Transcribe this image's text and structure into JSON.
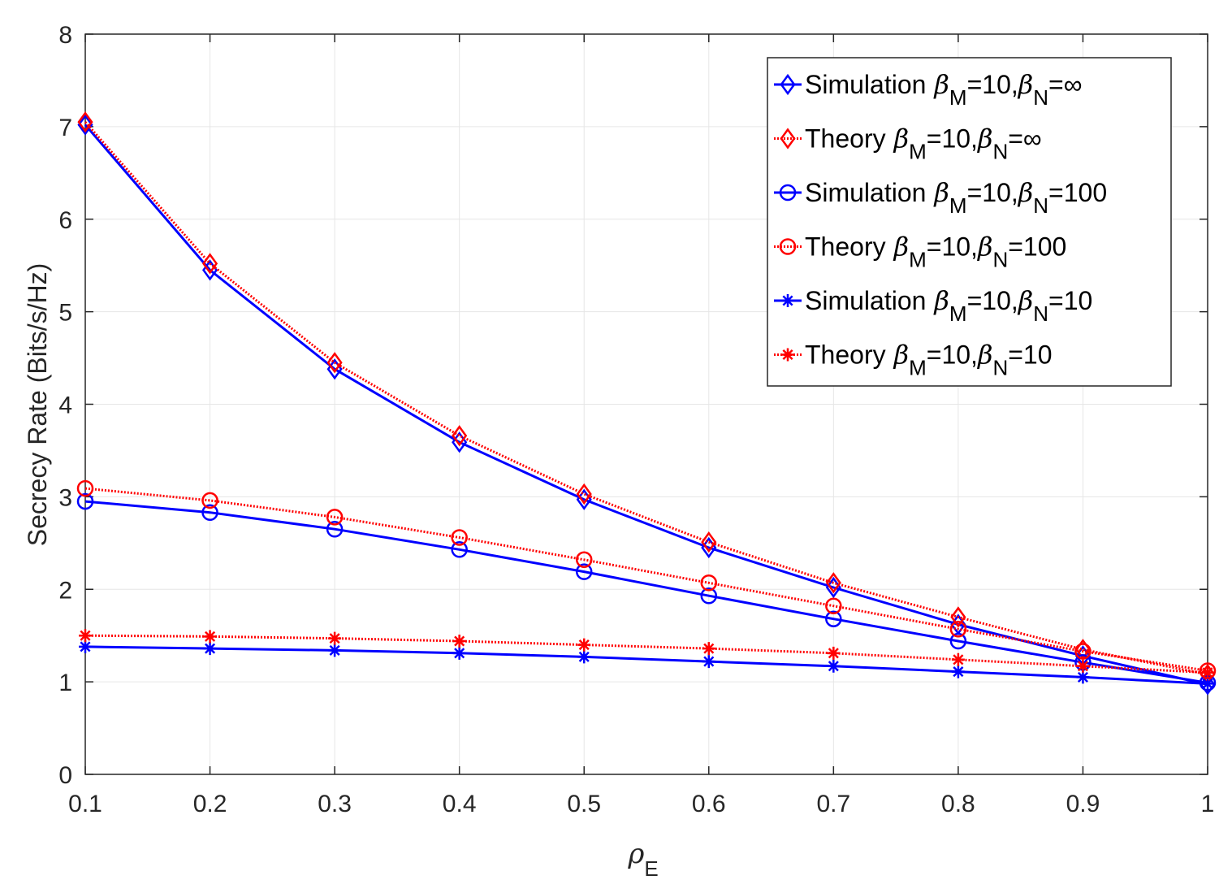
{
  "chart_data": {
    "type": "line",
    "title": "",
    "xlabel": {
      "symbol": "ρ",
      "sub": "E"
    },
    "ylabel": "Secrecy Rate (Bits/s/Hz)",
    "xlim": [
      0.1,
      1
    ],
    "ylim": [
      0,
      8
    ],
    "grid": true,
    "legend_position": "top-right",
    "x": [
      0.1,
      0.2,
      0.3,
      0.4,
      0.5,
      0.6,
      0.7,
      0.8,
      0.9,
      1.0
    ],
    "xticks": [
      0.1,
      0.2,
      0.3,
      0.4,
      0.5,
      0.6,
      0.7,
      0.8,
      0.9,
      1
    ],
    "xtick_labels": [
      "0.1",
      "0.2",
      "0.3",
      "0.4",
      "0.5",
      "0.6",
      "0.7",
      "0.8",
      "0.9",
      "1"
    ],
    "yticks": [
      0,
      1,
      2,
      3,
      4,
      5,
      6,
      7,
      8
    ],
    "ytick_labels": [
      "0",
      "1",
      "2",
      "3",
      "4",
      "5",
      "6",
      "7",
      "8"
    ],
    "series": [
      {
        "name": "Simulation βM=10,βN=∞",
        "label_prefix": "Simulation",
        "beta_n": "∞",
        "color": "#0000ff",
        "style": "solid",
        "marker": "diamond",
        "values": [
          7.02,
          5.45,
          4.38,
          3.59,
          2.97,
          2.45,
          2.02,
          1.62,
          1.28,
          0.97
        ]
      },
      {
        "name": "Theory βM=10,βN=∞",
        "label_prefix": "Theory",
        "beta_n": "∞",
        "color": "#ff0000",
        "style": "dotted",
        "marker": "diamond",
        "values": [
          7.05,
          5.52,
          4.45,
          3.66,
          3.03,
          2.51,
          2.07,
          1.7,
          1.35,
          1.08
        ]
      },
      {
        "name": "Simulation βM=10,βN=100",
        "label_prefix": "Simulation",
        "beta_n": "100",
        "color": "#0000ff",
        "style": "solid",
        "marker": "circle",
        "values": [
          2.95,
          2.83,
          2.65,
          2.43,
          2.19,
          1.93,
          1.68,
          1.44,
          1.21,
          0.99
        ]
      },
      {
        "name": "Theory βM=10,βN=100",
        "label_prefix": "Theory",
        "beta_n": "100",
        "color": "#ff0000",
        "style": "dotted",
        "marker": "circle",
        "values": [
          3.09,
          2.96,
          2.78,
          2.56,
          2.32,
          2.07,
          1.82,
          1.57,
          1.33,
          1.12
        ]
      },
      {
        "name": "Simulation βM=10,βN=10",
        "label_prefix": "Simulation",
        "beta_n": "10",
        "color": "#0000ff",
        "style": "solid",
        "marker": "star",
        "values": [
          1.38,
          1.36,
          1.34,
          1.31,
          1.27,
          1.22,
          1.17,
          1.11,
          1.05,
          0.98
        ]
      },
      {
        "name": "Theory βM=10,βN=10",
        "label_prefix": "Theory",
        "beta_n": "10",
        "color": "#ff0000",
        "style": "dotted",
        "marker": "star",
        "values": [
          1.5,
          1.49,
          1.47,
          1.44,
          1.4,
          1.36,
          1.31,
          1.24,
          1.17,
          1.1
        ]
      }
    ],
    "legend_beta_m_value": "10",
    "legend_symbols": {
      "beta": "β",
      "sub_m": "M",
      "sub_n": "N"
    }
  }
}
